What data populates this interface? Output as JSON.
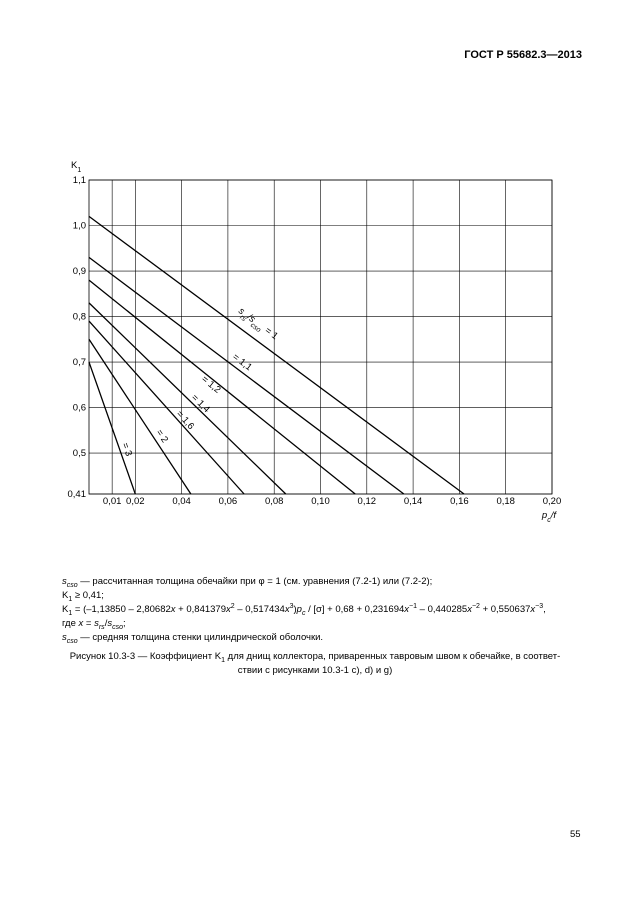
{
  "header": "ГОСТ Р 55682.3—2013",
  "chart_data": {
    "type": "line",
    "y_label": [
      [
        "K"
      ],
      [
        "1",
        "sub"
      ]
    ],
    "x_label": [
      [
        "p",
        "i"
      ],
      [
        "c",
        "isub"
      ],
      [
        "/f",
        "i"
      ]
    ],
    "xlim": [
      0,
      0.2
    ],
    "ylim": [
      0.41,
      1.1
    ],
    "xticks": [
      {
        "value": 0.01,
        "label": "0,01"
      },
      {
        "value": 0.02,
        "label": "0,02"
      },
      {
        "value": 0.04,
        "label": "0,04"
      },
      {
        "value": 0.06,
        "label": "0,06"
      },
      {
        "value": 0.08,
        "label": "0,08"
      },
      {
        "value": 0.1,
        "label": "0,10"
      },
      {
        "value": 0.12,
        "label": "0,12"
      },
      {
        "value": 0.14,
        "label": "0,14"
      },
      {
        "value": 0.16,
        "label": "0,16"
      },
      {
        "value": 0.18,
        "label": "0,18"
      },
      {
        "value": 0.2,
        "label": "0,20"
      }
    ],
    "yticks": [
      {
        "value": 0.41,
        "label": "0,41"
      },
      {
        "value": 0.5,
        "label": "0,5"
      },
      {
        "value": 0.6,
        "label": "0,6"
      },
      {
        "value": 0.7,
        "label": "0,7"
      },
      {
        "value": 0.8,
        "label": "0,8"
      },
      {
        "value": 0.9,
        "label": "0,9"
      },
      {
        "value": 1.0,
        "label": "1,0"
      },
      {
        "value": 1.1,
        "label": "1,1"
      }
    ],
    "grid": true,
    "color": "#000000",
    "curve_label_prefix": [
      [
        "s",
        "i"
      ],
      [
        "rs",
        "isub"
      ],
      [
        "/s",
        "i"
      ],
      [
        "cso",
        "isub"
      ]
    ],
    "series": [
      {
        "name": "= 1",
        "x": [
          0,
          0.162
        ],
        "values": [
          1.02,
          0.41
        ]
      },
      {
        "name": "= 1,1",
        "x": [
          0,
          0.136
        ],
        "values": [
          0.93,
          0.41
        ]
      },
      {
        "name": "= 1,2",
        "x": [
          0,
          0.115
        ],
        "values": [
          0.88,
          0.41
        ]
      },
      {
        "name": "= 1,4",
        "x": [
          0,
          0.085
        ],
        "values": [
          0.83,
          0.41
        ]
      },
      {
        "name": "= 1,6",
        "x": [
          0,
          0.067
        ],
        "values": [
          0.79,
          0.41
        ]
      },
      {
        "name": "= 2",
        "x": [
          0,
          0.044
        ],
        "values": [
          0.75,
          0.41
        ]
      },
      {
        "name": "= 3",
        "x": [
          0,
          0.02
        ],
        "values": [
          0.7,
          0.41
        ]
      }
    ]
  },
  "notes": [
    [
      [
        "s",
        "i"
      ],
      [
        "cso",
        "isub"
      ],
      [
        " — рассчитанная толщина обечайки при φ = 1 (см. уравнения (7.2-1) или (7.2-2);"
      ]
    ],
    [
      [
        "K"
      ],
      [
        "1",
        "sub"
      ],
      [
        " ≥ 0,41;"
      ]
    ],
    [
      [
        "K"
      ],
      [
        "1",
        "sub"
      ],
      [
        " = (–1,13850 – 2,80682"
      ],
      [
        "x",
        "i"
      ],
      [
        " + 0,841379"
      ],
      [
        "x",
        "i"
      ],
      [
        "2",
        "sup"
      ],
      [
        " – 0,517434"
      ],
      [
        "x",
        "i"
      ],
      [
        "3",
        "sup"
      ],
      [
        ")"
      ],
      [
        "p",
        "i"
      ],
      [
        "c",
        "isub"
      ],
      [
        " / [σ] + 0,68 + 0,231694"
      ],
      [
        "x",
        "i"
      ],
      [
        "−1",
        "sup"
      ],
      [
        " – 0,440285"
      ],
      [
        "x",
        "i"
      ],
      [
        "−2",
        "sup"
      ],
      [
        " + 0,550637"
      ],
      [
        "x",
        "i"
      ],
      [
        "−3",
        "sup"
      ],
      [
        ","
      ]
    ],
    [
      [
        "где "
      ],
      [
        "x",
        "i"
      ],
      [
        " = "
      ],
      [
        "s",
        "i"
      ],
      [
        "rs",
        "isub"
      ],
      [
        "/"
      ],
      [
        "s",
        "i"
      ],
      [
        "cso",
        "isub"
      ],
      [
        ";"
      ]
    ],
    [
      [
        "s",
        "i"
      ],
      [
        "cso",
        "isub"
      ],
      [
        " — средняя толщина стенки цилиндрической оболочки."
      ]
    ]
  ],
  "caption": [
    [
      [
        "Рисунок 10.3-3 — Коэффициент K"
      ],
      [
        "1",
        "sub"
      ],
      [
        " для днищ коллектора, приваренных тавровым швом к обечайке, в соответ-"
      ]
    ],
    [
      [
        "ствии с рисунками 10.3-1 c), d) и g)"
      ]
    ]
  ],
  "page_number": "55"
}
